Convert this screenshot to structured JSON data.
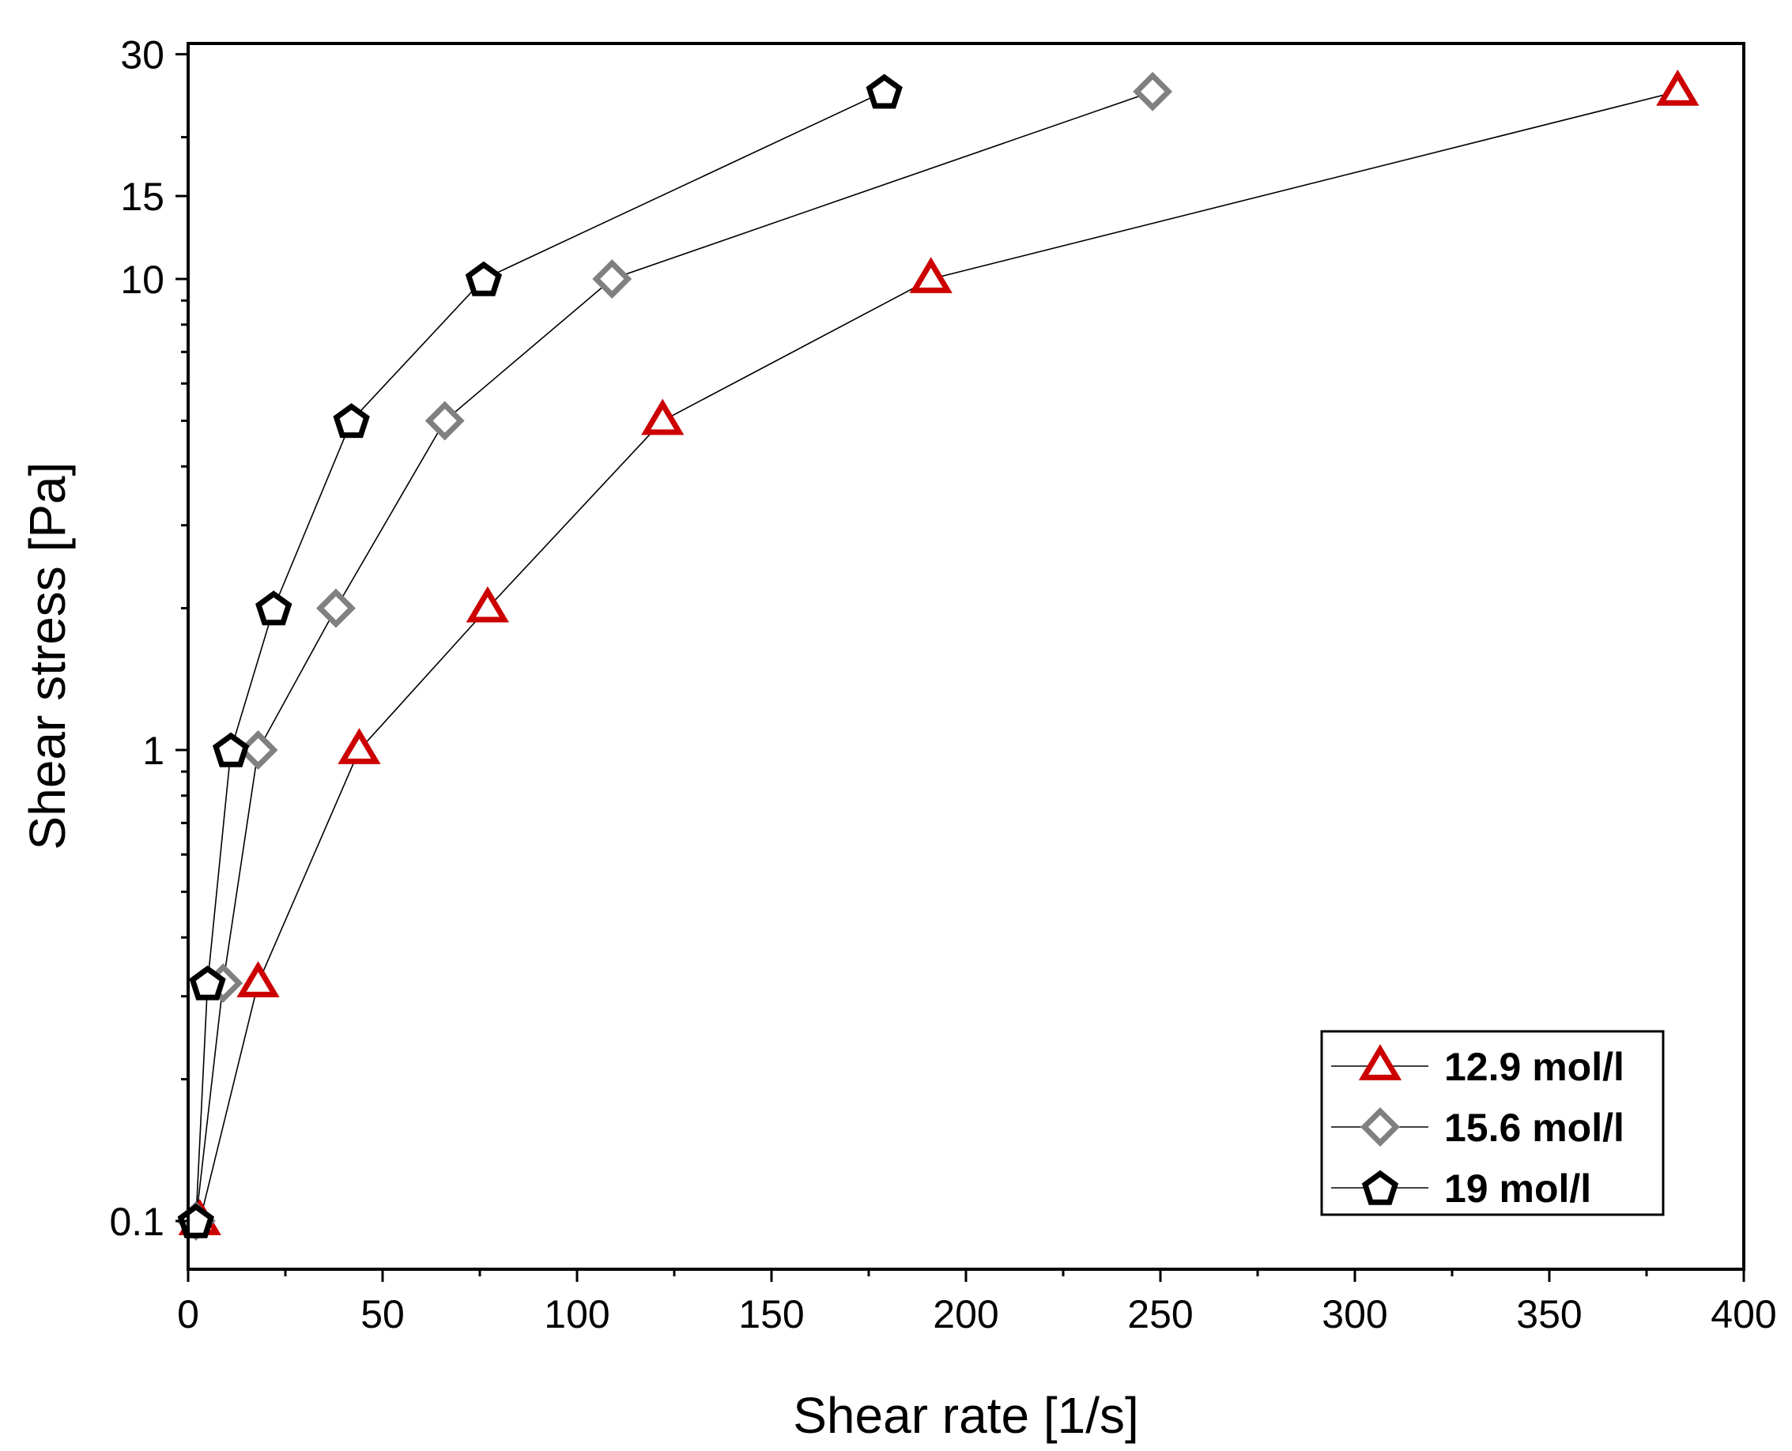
{
  "chart_data": {
    "type": "scatter",
    "title": "",
    "xlabel": "Shear rate [1/s]",
    "ylabel": "Shear stress [Pa]",
    "xlim": [
      0,
      400
    ],
    "ylim": [
      0.07,
      30
    ],
    "yscale": "log",
    "grid": false,
    "legend_position": "bottom-right",
    "x_ticks": [
      0,
      50,
      100,
      150,
      200,
      250,
      300,
      350,
      400
    ],
    "x_tick_labels": [
      "0",
      "50",
      "100",
      "150",
      "200",
      "250",
      "300",
      "350",
      "400"
    ],
    "y_ticks": [
      0.1,
      1,
      10,
      15,
      30
    ],
    "y_tick_labels": [
      "0.1",
      "1",
      "10",
      "15",
      "30"
    ],
    "series": [
      {
        "name": "12.9 mol/l",
        "marker": "triangle",
        "color": "#cc0000",
        "points": [
          {
            "x": 3,
            "y": 0.1
          },
          {
            "x": 18,
            "y": 0.32
          },
          {
            "x": 44,
            "y": 1
          },
          {
            "x": 77,
            "y": 2
          },
          {
            "x": 122,
            "y": 5
          },
          {
            "x": 191,
            "y": 10
          },
          {
            "x": 383,
            "y": 25
          }
        ]
      },
      {
        "name": "15.6 mol/l",
        "marker": "diamond",
        "color": "#808080",
        "points": [
          {
            "x": 2,
            "y": 0.1
          },
          {
            "x": 9,
            "y": 0.32
          },
          {
            "x": 18,
            "y": 1
          },
          {
            "x": 38,
            "y": 2
          },
          {
            "x": 66,
            "y": 5
          },
          {
            "x": 109,
            "y": 10
          },
          {
            "x": 248,
            "y": 25
          }
        ]
      },
      {
        "name": "19 mol/l",
        "marker": "pentagon",
        "color": "#000000",
        "points": [
          {
            "x": 2,
            "y": 0.1
          },
          {
            "x": 5,
            "y": 0.32
          },
          {
            "x": 11,
            "y": 1
          },
          {
            "x": 22,
            "y": 2
          },
          {
            "x": 42,
            "y": 5
          },
          {
            "x": 76,
            "y": 10
          },
          {
            "x": 179,
            "y": 25
          }
        ]
      }
    ]
  }
}
